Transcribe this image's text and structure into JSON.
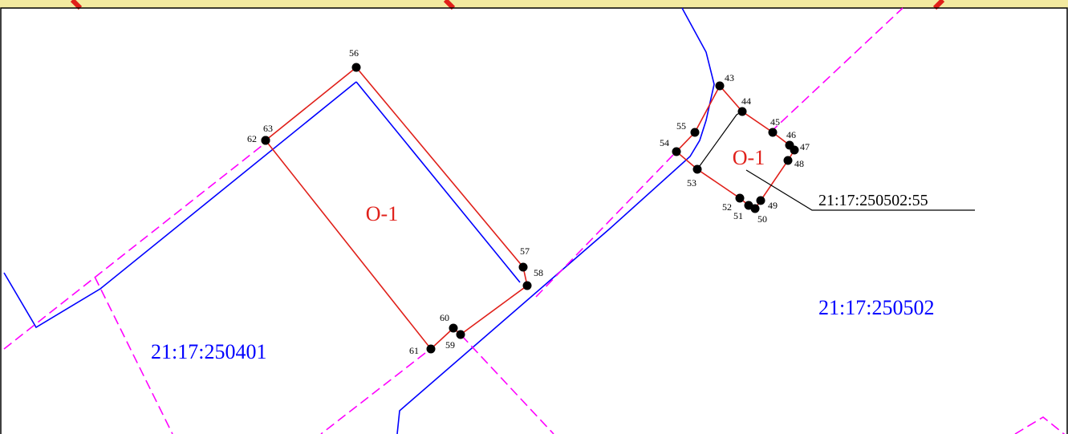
{
  "zones": [
    "О-1",
    "О-1"
  ],
  "parcel_label": "21:17:250502:55",
  "quarters": [
    "21:17:250401",
    "21:17:250502"
  ],
  "points": [
    "43",
    "44",
    "45",
    "46",
    "47",
    "48",
    "49",
    "50",
    "51",
    "52",
    "53",
    "54",
    "55",
    "56",
    "57",
    "58",
    "59",
    "60",
    "61",
    "62",
    "63"
  ]
}
